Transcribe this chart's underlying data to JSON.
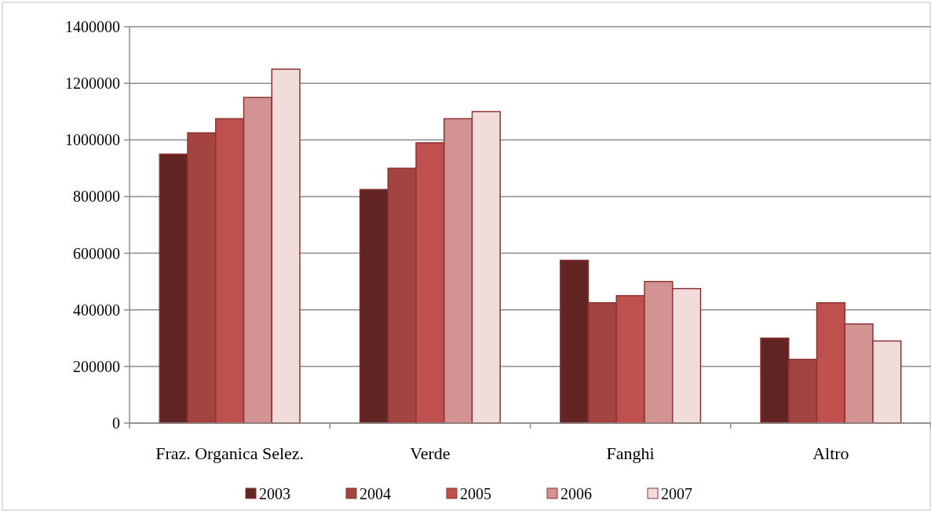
{
  "chart_data": {
    "type": "bar",
    "categories": [
      "Fraz. Organica Selez.",
      "Verde",
      "Fanghi",
      "Altro"
    ],
    "series": [
      {
        "name": "2003",
        "color": "#632523",
        "values": [
          950000,
          825000,
          575000,
          300000
        ]
      },
      {
        "name": "2004",
        "color": "#a34440",
        "values": [
          1025000,
          900000,
          425000,
          225000
        ]
      },
      {
        "name": "2005",
        "color": "#c0504d",
        "values": [
          1075000,
          990000,
          450000,
          425000
        ]
      },
      {
        "name": "2006",
        "color": "#d39392",
        "values": [
          1150000,
          1075000,
          500000,
          350000
        ]
      },
      {
        "name": "2007",
        "color": "#f2dcdb",
        "values": [
          1250000,
          1100000,
          475000,
          290000
        ]
      }
    ],
    "ylim": [
      0,
      1400000
    ],
    "yticks": [
      0,
      200000,
      400000,
      600000,
      800000,
      1000000,
      1200000,
      1400000
    ],
    "grid": "y",
    "legend": "bottom"
  }
}
